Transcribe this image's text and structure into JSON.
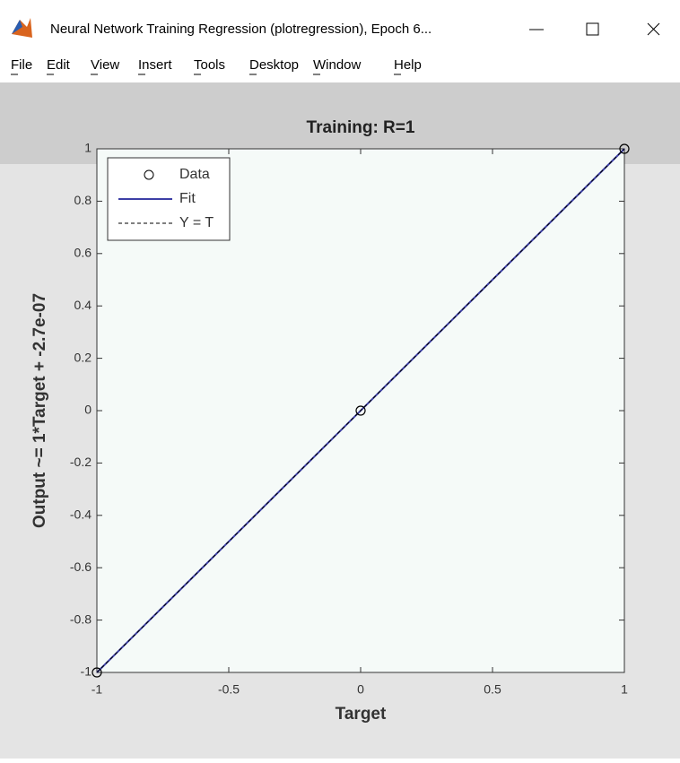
{
  "window": {
    "title": "Neural Network Training Regression (plotregression), Epoch 6...",
    "menu": [
      "File",
      "Edit",
      "View",
      "Insert",
      "Tools",
      "Desktop",
      "Window",
      "Help"
    ]
  },
  "chart_data": {
    "type": "scatter",
    "title": "Training: R=1",
    "x_label": "Target",
    "y_label": "Output ~= 1*Target + -2.7e-07",
    "xlim": [
      -1,
      1
    ],
    "ylim": [
      -1,
      1
    ],
    "xticks": [
      -1,
      -0.5,
      0,
      0.5,
      1
    ],
    "yticks": [
      -1,
      -0.8,
      -0.6,
      -0.4,
      -0.2,
      0,
      0.2,
      0.4,
      0.6,
      0.8,
      1
    ],
    "grid": false,
    "legend": "upper left",
    "series": [
      {
        "name": "Data",
        "type": "scatter",
        "x": [
          -1,
          0,
          1
        ],
        "values": [
          -1,
          0,
          1
        ],
        "color": "#000000"
      },
      {
        "name": "Fit",
        "type": "line",
        "x": [
          -1,
          1
        ],
        "values": [
          -1,
          1
        ],
        "color": "#3d3fa6"
      },
      {
        "name": "Y = T",
        "type": "line",
        "x": [
          -1,
          1
        ],
        "values": [
          -1,
          1
        ],
        "color": "#000000",
        "dashed": true
      }
    ]
  }
}
